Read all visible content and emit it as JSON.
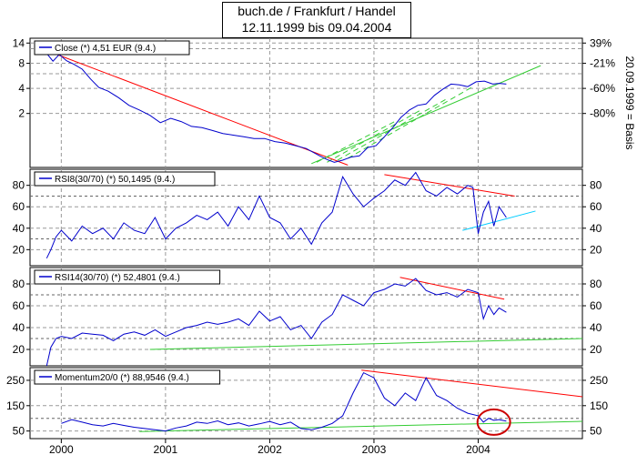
{
  "title": {
    "line1": "buch.de / Frankfurt / Handel",
    "line2": "12.11.1999 bis 09.04.2004"
  },
  "right_axis_label": "20.09.1999 = Basis",
  "x_labels": [
    "2000",
    "2001",
    "2002",
    "2003",
    "2004"
  ],
  "chart_data": [
    {
      "type": "line",
      "name": "price",
      "legend": "Close (*) 4,51 EUR (9.4.)",
      "yscale": "log",
      "ylim": [
        0.45,
        16
      ],
      "yticks_left": [
        "14",
        "8",
        "4",
        "2"
      ],
      "yticks_right": [
        "39%",
        "-21%",
        "-60%",
        "-80%"
      ],
      "series": [
        {
          "name": "Close (*) 4,51 EUR (9.4.)",
          "color": "#0000cc",
          "x": [
            1999.86,
            1999.92,
            1999.98,
            2000.05,
            2000.12,
            2000.2,
            2000.28,
            2000.36,
            2000.45,
            2000.55,
            2000.65,
            2000.75,
            2000.85,
            2000.95,
            2001.05,
            2001.15,
            2001.25,
            2001.35,
            2001.45,
            2001.55,
            2001.65,
            2001.75,
            2001.85,
            2001.95,
            2002.05,
            2002.15,
            2002.25,
            2002.35,
            2002.42,
            2002.48,
            2002.55,
            2002.62,
            2002.7,
            2002.78,
            2002.86,
            2002.94,
            2003.02,
            2003.1,
            2003.18,
            2003.26,
            2003.34,
            2003.42,
            2003.5,
            2003.58,
            2003.66,
            2003.74,
            2003.82,
            2003.9,
            2003.98,
            2004.06,
            2004.14,
            2004.2,
            2004.27
          ],
          "values": [
            10.5,
            8.5,
            10.2,
            8.6,
            7.8,
            6.8,
            5.2,
            4.1,
            3.7,
            3.1,
            2.5,
            2.2,
            1.9,
            1.55,
            1.75,
            1.6,
            1.4,
            1.35,
            1.25,
            1.15,
            1.1,
            1.05,
            1.0,
            1.0,
            0.92,
            0.88,
            0.82,
            0.76,
            0.68,
            0.62,
            0.56,
            0.52,
            0.55,
            0.6,
            0.62,
            0.78,
            0.82,
            1.05,
            1.35,
            1.8,
            2.2,
            2.5,
            2.6,
            3.3,
            3.9,
            4.5,
            4.4,
            4.2,
            4.8,
            4.9,
            4.5,
            4.6,
            4.51
          ]
        }
      ],
      "trendlines": [
        {
          "color": "#ff0000",
          "x": [
            1999.85,
            2002.75
          ],
          "values": [
            11.5,
            0.48
          ]
        },
        {
          "color": "#33cc33",
          "x": [
            2002.4,
            2004.6
          ],
          "values": [
            0.5,
            7.5
          ]
        },
        {
          "color": "#33cc33",
          "x": [
            2002.45,
            2003.2
          ],
          "values": [
            0.52,
            1.6
          ],
          "dashed": true
        },
        {
          "color": "#33cc33",
          "x": [
            2002.55,
            2003.45
          ],
          "values": [
            0.52,
            2.2
          ],
          "dashed": true
        },
        {
          "color": "#33cc33",
          "x": [
            2002.65,
            2003.7
          ],
          "values": [
            0.55,
            3.0
          ],
          "dashed": true
        },
        {
          "color": "#33cc33",
          "x": [
            2002.75,
            2003.95
          ],
          "values": [
            0.58,
            4.2
          ],
          "dashed": true
        }
      ]
    },
    {
      "type": "line",
      "name": "rsi8",
      "legend": "RSI8(30/70) (*) 50,1495 (9.4.)",
      "ylim": [
        5,
        95
      ],
      "yticks": [
        "80",
        "60",
        "40",
        "20"
      ],
      "ref_lines": [
        30,
        70
      ],
      "series": [
        {
          "name": "RSI8(30/70) (*) 50,1495 (9.4.)",
          "color": "#0000cc",
          "x": [
            1999.86,
            1999.9,
            1999.95,
            2000.0,
            2000.1,
            2000.2,
            2000.3,
            2000.4,
            2000.5,
            2000.6,
            2000.7,
            2000.8,
            2000.9,
            2001.0,
            2001.1,
            2001.2,
            2001.3,
            2001.4,
            2001.5,
            2001.6,
            2001.7,
            2001.8,
            2001.9,
            2002.0,
            2002.1,
            2002.2,
            2002.3,
            2002.4,
            2002.5,
            2002.6,
            2002.7,
            2002.8,
            2002.9,
            2003.0,
            2003.1,
            2003.2,
            2003.3,
            2003.4,
            2003.5,
            2003.6,
            2003.7,
            2003.8,
            2003.9,
            2003.95,
            2004.0,
            2004.05,
            2004.1,
            2004.15,
            2004.2,
            2004.27
          ],
          "values": [
            12,
            20,
            32,
            38,
            28,
            42,
            35,
            40,
            30,
            45,
            38,
            35,
            50,
            30,
            40,
            45,
            52,
            48,
            55,
            42,
            60,
            48,
            70,
            50,
            45,
            30,
            40,
            25,
            45,
            55,
            88,
            72,
            60,
            68,
            75,
            85,
            80,
            92,
            75,
            70,
            78,
            72,
            80,
            78,
            35,
            55,
            65,
            42,
            60,
            50
          ]
        }
      ],
      "trendlines": [
        {
          "color": "#ff0000",
          "x": [
            2003.1,
            2004.35
          ],
          "values": [
            90,
            70
          ]
        },
        {
          "color": "#00ccff",
          "x": [
            2003.85,
            2004.55
          ],
          "values": [
            38,
            56
          ]
        }
      ]
    },
    {
      "type": "line",
      "name": "rsi14",
      "legend": "RSI14(30/70) (*) 52,4801 (9.4.)",
      "ylim": [
        5,
        95
      ],
      "yticks": [
        "80",
        "60",
        "40",
        "20"
      ],
      "ref_lines": [
        30,
        70
      ],
      "series": [
        {
          "name": "RSI14(30/70) (*) 52,4801 (9.4.)",
          "color": "#0000cc",
          "x": [
            1999.86,
            1999.9,
            1999.95,
            2000.0,
            2000.1,
            2000.2,
            2000.3,
            2000.4,
            2000.5,
            2000.6,
            2000.7,
            2000.8,
            2000.9,
            2001.0,
            2001.1,
            2001.2,
            2001.3,
            2001.4,
            2001.5,
            2001.6,
            2001.7,
            2001.8,
            2001.9,
            2002.0,
            2002.1,
            2002.2,
            2002.3,
            2002.4,
            2002.5,
            2002.6,
            2002.7,
            2002.8,
            2002.9,
            2003.0,
            2003.1,
            2003.2,
            2003.3,
            2003.4,
            2003.5,
            2003.6,
            2003.7,
            2003.8,
            2003.9,
            2004.0,
            2004.05,
            2004.1,
            2004.15,
            2004.2,
            2004.27
          ],
          "values": [
            5,
            22,
            30,
            32,
            30,
            35,
            34,
            33,
            28,
            34,
            36,
            33,
            38,
            32,
            36,
            40,
            42,
            45,
            43,
            45,
            48,
            42,
            55,
            46,
            50,
            38,
            42,
            30,
            45,
            52,
            70,
            65,
            60,
            72,
            75,
            80,
            78,
            85,
            74,
            70,
            72,
            68,
            75,
            72,
            48,
            60,
            52,
            58,
            54
          ]
        }
      ],
      "trendlines": [
        {
          "color": "#ff0000",
          "x": [
            2003.25,
            2004.25
          ],
          "values": [
            86,
            66
          ]
        },
        {
          "color": "#33cc33",
          "x": [
            2000.85,
            2005.0
          ],
          "values": [
            20,
            30
          ]
        }
      ]
    },
    {
      "type": "line",
      "name": "momentum",
      "legend": "Momentum20/0 (*) 88,9546 (9.4.)",
      "ylim": [
        20,
        300
      ],
      "yticks": [
        "250",
        "150",
        "50"
      ],
      "ref_lines": [
        100
      ],
      "series": [
        {
          "name": "Momentum20/0 (*) 88,9546 (9.4.)",
          "color": "#0000cc",
          "x": [
            2000.0,
            2000.1,
            2000.2,
            2000.3,
            2000.4,
            2000.5,
            2000.6,
            2000.7,
            2000.8,
            2000.9,
            2001.0,
            2001.1,
            2001.2,
            2001.3,
            2001.4,
            2001.5,
            2001.6,
            2001.7,
            2001.8,
            2001.9,
            2002.0,
            2002.1,
            2002.2,
            2002.3,
            2002.4,
            2002.5,
            2002.6,
            2002.7,
            2002.8,
            2002.9,
            2003.0,
            2003.1,
            2003.2,
            2003.3,
            2003.4,
            2003.5,
            2003.6,
            2003.7,
            2003.8,
            2003.9,
            2004.0,
            2004.05,
            2004.1,
            2004.15,
            2004.2,
            2004.27
          ],
          "values": [
            80,
            95,
            85,
            75,
            70,
            80,
            72,
            65,
            60,
            55,
            50,
            62,
            70,
            85,
            80,
            90,
            75,
            82,
            70,
            78,
            88,
            75,
            85,
            60,
            55,
            65,
            80,
            110,
            200,
            280,
            260,
            180,
            150,
            200,
            170,
            260,
            190,
            170,
            140,
            120,
            110,
            85,
            100,
            92,
            95,
            89
          ]
        }
      ],
      "trendlines": [
        {
          "color": "#ff0000",
          "x": [
            2002.88,
            2005.0
          ],
          "values": [
            290,
            185
          ]
        },
        {
          "color": "#33cc33",
          "x": [
            2000.75,
            2005.0
          ],
          "values": [
            48,
            88
          ]
        }
      ],
      "highlight": {
        "shape": "circle",
        "color": "#cc0000",
        "x": 2004.15,
        "value": 85
      }
    }
  ]
}
